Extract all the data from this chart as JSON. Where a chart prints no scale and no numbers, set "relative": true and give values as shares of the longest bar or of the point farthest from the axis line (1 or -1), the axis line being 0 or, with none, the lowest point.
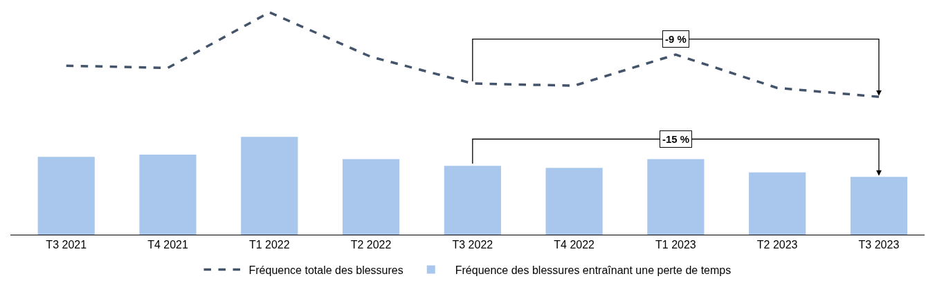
{
  "chart_data": {
    "type": "bar",
    "relative": true,
    "categories": [
      "T3 2021",
      "T4 2021",
      "T1 2022",
      "T2 2022",
      "T3 2022",
      "T4 2022",
      "T1 2023",
      "T2 2023",
      "T3 2023"
    ],
    "series": [
      {
        "name": "Fréquence totale des blessures",
        "type": "line",
        "line_style": "dashed",
        "marker": "none",
        "color": "#44546a",
        "values": [
          0.76,
          0.75,
          1.0,
          0.8,
          0.68,
          0.67,
          0.81,
          0.66,
          0.62
        ]
      },
      {
        "name": "Fréquence des blessures entraînant une perte de temps",
        "color": "#a9c7ec",
        "values": [
          0.35,
          0.36,
          0.44,
          0.34,
          0.31,
          0.3,
          0.34,
          0.28,
          0.26
        ]
      }
    ],
    "annotations": [
      "-9 %",
      "-15 %"
    ],
    "legend": "bottom"
  }
}
